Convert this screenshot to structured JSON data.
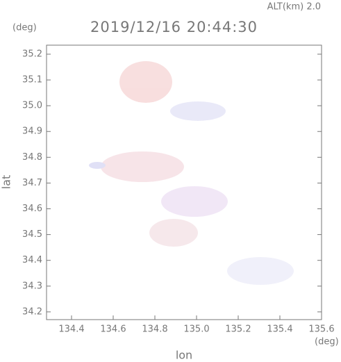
{
  "chart_data": {
    "type": "map",
    "header": "ALT(km) 2.0",
    "title": "2019/12/16 20:44:30",
    "y_unit": "(deg)",
    "x_unit": "(deg)",
    "ylabel": "lat",
    "xlabel": "lon",
    "xlim": [
      134.28,
      135.6
    ],
    "ylim": [
      34.17,
      35.235
    ],
    "xticks": [
      134.4,
      134.6,
      134.8,
      {
        "value": 135.0,
        "label": "135.0"
      },
      135.2,
      135.4,
      135.6
    ],
    "yticks": [
      34.2,
      34.3,
      34.4,
      34.5,
      34.6,
      34.7,
      34.8,
      34.9,
      {
        "value": 35.0,
        "label": "35.0"
      },
      35.1,
      35.2
    ]
  }
}
